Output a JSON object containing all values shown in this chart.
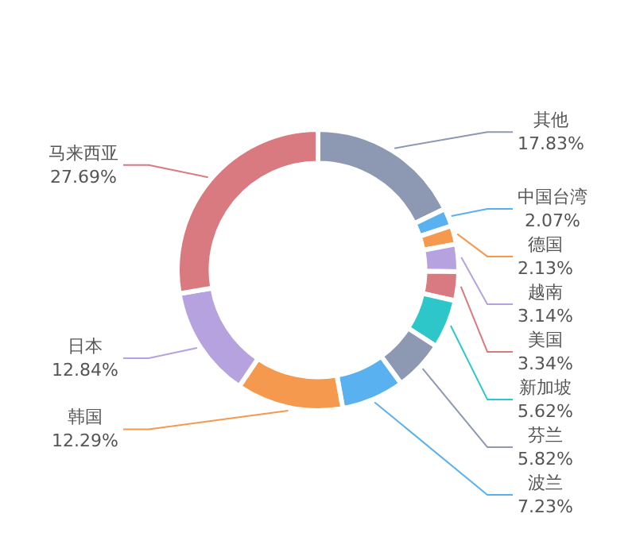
{
  "chart_data": {
    "type": "donut",
    "categories": [
      "其他",
      "中国台湾",
      "德国",
      "越南",
      "美国",
      "新加坡",
      "芬兰",
      "波兰",
      "韩国",
      "日本",
      "马来西亚"
    ],
    "values": [
      17.83,
      2.07,
      2.13,
      3.14,
      3.34,
      5.62,
      5.82,
      7.23,
      12.29,
      12.84,
      27.69
    ],
    "value_labels": [
      "17.83%",
      "2.07%",
      "2.13%",
      "3.14%",
      "3.34%",
      "5.62%",
      "5.82%",
      "7.23%",
      "12.29%",
      "12.84%",
      "27.69%"
    ],
    "colors": [
      "#8d98b3",
      "#5ab1ef",
      "#f5994e",
      "#b6a2de",
      "#d87a80",
      "#2ec7c9",
      "#8d98b3",
      "#5ab1ef",
      "#f5994e",
      "#b6a2de",
      "#d87a80"
    ]
  }
}
